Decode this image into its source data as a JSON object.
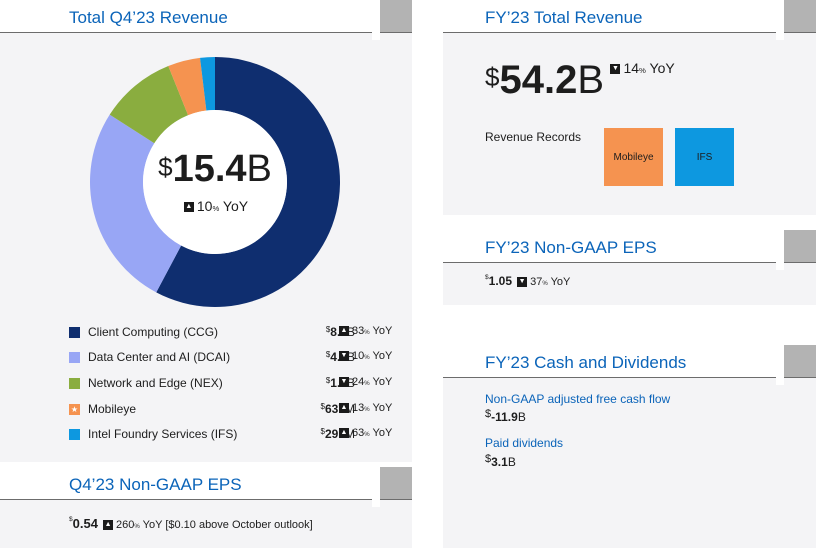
{
  "q4_revenue": {
    "title": "Total Q4’23 Revenue",
    "total_prefix": "$",
    "total_value": "15.4",
    "total_unit": "B",
    "yoy_pct": "10",
    "yoy_suffix": " YoY",
    "segments": [
      {
        "label": "Client Computing (CCG)",
        "prefix": "$",
        "value": "8.8",
        "unit": "B",
        "dir": "up",
        "yoy": "33",
        "color": "#0f2e6f"
      },
      {
        "label": "Data Center and AI (DCAI)",
        "prefix": "$",
        "value": "4.0",
        "unit": "B",
        "dir": "down",
        "yoy": "10",
        "color": "#98a6f5"
      },
      {
        "label": "Network and Edge (NEX)",
        "prefix": "$",
        "value": "1.5",
        "unit": "B",
        "dir": "down",
        "yoy": "24",
        "color": "#8aad3f"
      },
      {
        "label": "Mobileye",
        "prefix": "$",
        "value": "637",
        "unit": "M",
        "dir": "up",
        "yoy": "13",
        "color": "#f59350"
      },
      {
        "label": "Intel Foundry Services (IFS)",
        "prefix": "$",
        "value": "291",
        "unit": "M",
        "dir": "up",
        "yoy": "63",
        "color": "#0d98e0"
      }
    ]
  },
  "chart_data": {
    "type": "pie",
    "categories": [
      "Client Computing (CCG)",
      "Data Center and AI (DCAI)",
      "Network and Edge (NEX)",
      "Mobileye",
      "Intel Foundry Services (IFS)"
    ],
    "values": [
      8.8,
      4.0,
      1.5,
      0.637,
      0.291
    ],
    "title": "Total Q4’23 Revenue"
  },
  "q4_eps": {
    "title": "Q4’23 Non-GAAP EPS",
    "prefix": "$",
    "value": "0.54",
    "yoy": "260",
    "yoy_suffix": " YoY",
    "note": "[$0.10 above October outlook]"
  },
  "fy_revenue": {
    "title": "FY’23 Total Revenue",
    "prefix": "$",
    "value": "54.2",
    "unit": "B",
    "yoy": "14",
    "yoy_suffix": " YoY",
    "records_label": "Revenue Records",
    "records": [
      {
        "label": "Mobileye",
        "color": "#f59350"
      },
      {
        "label": "IFS",
        "color": "#0d98e0"
      }
    ]
  },
  "fy_eps": {
    "title": "FY’23 Non-GAAP EPS",
    "prefix": "$",
    "value": "1.05",
    "yoy": "37",
    "yoy_suffix": " YoY"
  },
  "fy_cash": {
    "title": "FY’23 Cash and Dividends",
    "fcf_label": "Non-GAAP adjusted free cash flow",
    "fcf_prefix": "$",
    "fcf_value": "-11.9",
    "fcf_unit": "B",
    "div_label": "Paid dividends",
    "div_prefix": "$",
    "div_value": "3.1",
    "div_unit": "B"
  },
  "pct_sign": "%"
}
